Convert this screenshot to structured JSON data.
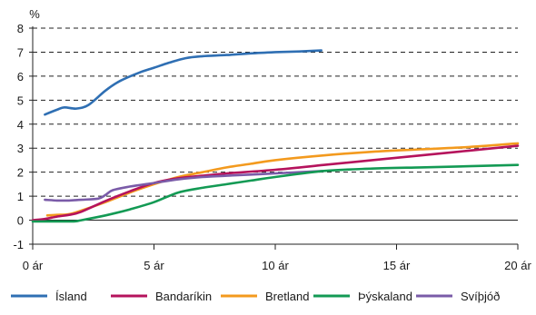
{
  "chart_data": {
    "type": "line",
    "ylabel": "%",
    "ylim": [
      -1,
      8
    ],
    "xlim": [
      0,
      20
    ],
    "yticks": [
      "-1",
      "0",
      "1",
      "2",
      "3",
      "4",
      "5",
      "6",
      "7",
      "8"
    ],
    "xticks": [
      "0 ár",
      "5 ár",
      "10 ár",
      "15 ár",
      "20 ár"
    ],
    "xtick_values": [
      0,
      5,
      10,
      15,
      20
    ],
    "grid": "dashed horizontal",
    "legend_position": "bottom",
    "series": [
      {
        "name": "Ísland",
        "color": "#2f6fb3",
        "points": [
          [
            0.5,
            4.4
          ],
          [
            1.0,
            4.6
          ],
          [
            1.3,
            4.7
          ],
          [
            1.8,
            4.65
          ],
          [
            2.3,
            4.8
          ],
          [
            3.0,
            5.4
          ],
          [
            3.6,
            5.8
          ],
          [
            4.4,
            6.15
          ],
          [
            5.0,
            6.35
          ],
          [
            5.6,
            6.55
          ],
          [
            6.3,
            6.75
          ],
          [
            7.0,
            6.83
          ],
          [
            8.0,
            6.88
          ],
          [
            9.0,
            6.95
          ],
          [
            10.0,
            7.0
          ],
          [
            11.0,
            7.03
          ],
          [
            11.9,
            7.07
          ]
        ]
      },
      {
        "name": "Bandaríkin",
        "color": "#b5135c",
        "points": [
          [
            0.0,
            0.0
          ],
          [
            0.5,
            0.05
          ],
          [
            1.0,
            0.15
          ],
          [
            1.5,
            0.22
          ],
          [
            2.0,
            0.35
          ],
          [
            3.0,
            0.8
          ],
          [
            4.0,
            1.2
          ],
          [
            5.0,
            1.55
          ],
          [
            6.0,
            1.75
          ],
          [
            7.0,
            1.85
          ],
          [
            8.0,
            1.95
          ],
          [
            10.0,
            2.1
          ],
          [
            12.0,
            2.3
          ],
          [
            14.0,
            2.5
          ],
          [
            16.0,
            2.7
          ],
          [
            18.0,
            2.9
          ],
          [
            20.0,
            3.1
          ]
        ]
      },
      {
        "name": "Bretland",
        "color": "#f39a1e",
        "points": [
          [
            0.6,
            0.2
          ],
          [
            1.0,
            0.22
          ],
          [
            1.5,
            0.25
          ],
          [
            2.0,
            0.4
          ],
          [
            3.0,
            0.75
          ],
          [
            4.0,
            1.15
          ],
          [
            5.0,
            1.5
          ],
          [
            6.0,
            1.8
          ],
          [
            7.0,
            2.0
          ],
          [
            8.0,
            2.2
          ],
          [
            9.0,
            2.35
          ],
          [
            10.0,
            2.5
          ],
          [
            12.0,
            2.7
          ],
          [
            14.0,
            2.85
          ],
          [
            16.0,
            2.95
          ],
          [
            18.0,
            3.05
          ],
          [
            20.0,
            3.2
          ]
        ]
      },
      {
        "name": "Þýskaland",
        "color": "#139a54",
        "points": [
          [
            0.0,
            -0.05
          ],
          [
            1.0,
            -0.05
          ],
          [
            1.7,
            -0.05
          ],
          [
            2.0,
            0.0
          ],
          [
            3.0,
            0.2
          ],
          [
            4.0,
            0.45
          ],
          [
            5.0,
            0.75
          ],
          [
            6.0,
            1.15
          ],
          [
            7.0,
            1.35
          ],
          [
            8.0,
            1.5
          ],
          [
            9.0,
            1.65
          ],
          [
            10.0,
            1.8
          ],
          [
            12.0,
            2.05
          ],
          [
            14.0,
            2.15
          ],
          [
            16.0,
            2.2
          ],
          [
            18.0,
            2.25
          ],
          [
            20.0,
            2.3
          ]
        ]
      },
      {
        "name": "Svíþjóð",
        "color": "#7a5ba8",
        "points": [
          [
            0.5,
            0.85
          ],
          [
            1.0,
            0.82
          ],
          [
            1.5,
            0.82
          ],
          [
            2.0,
            0.85
          ],
          [
            2.7,
            0.9
          ],
          [
            3.0,
            1.05
          ],
          [
            3.3,
            1.25
          ],
          [
            4.0,
            1.4
          ],
          [
            5.0,
            1.55
          ],
          [
            6.0,
            1.7
          ],
          [
            7.0,
            1.8
          ],
          [
            8.0,
            1.85
          ],
          [
            9.0,
            1.9
          ],
          [
            10.0,
            1.95
          ],
          [
            11.0,
            2.0
          ],
          [
            12.0,
            2.05
          ]
        ]
      }
    ]
  }
}
